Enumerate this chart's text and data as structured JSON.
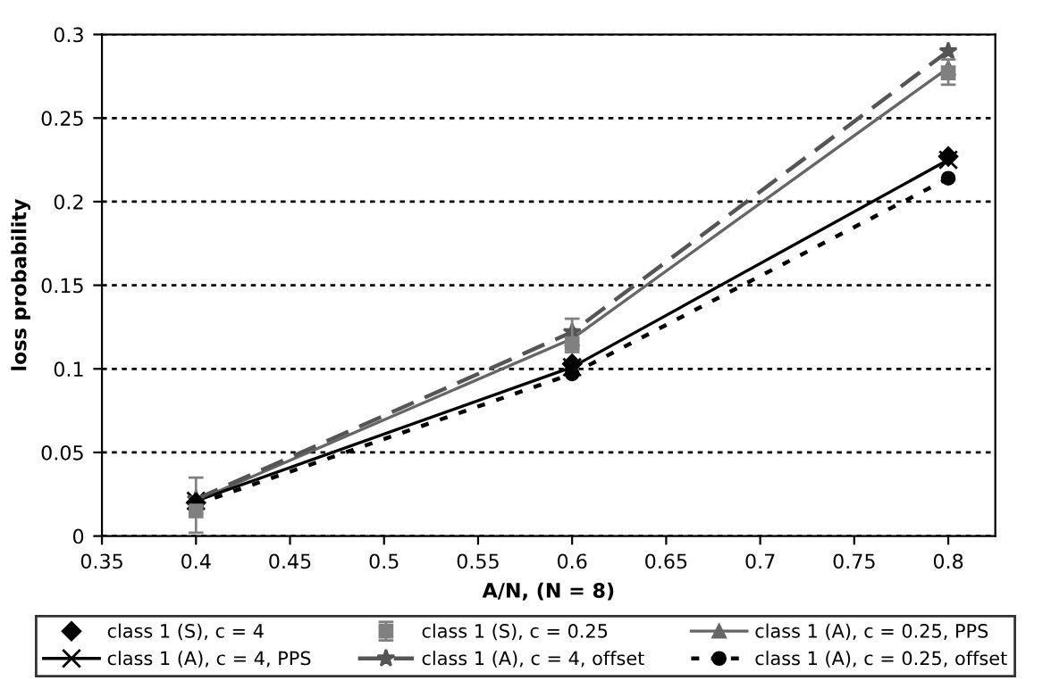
{
  "chart_data": {
    "type": "line",
    "xlabel": "A/N, (N = 8)",
    "ylabel": "loss probability",
    "x": [
      0.4,
      0.6,
      0.8
    ],
    "xlim": [
      0.35,
      0.825
    ],
    "xticks": [
      0.35,
      0.4,
      0.45,
      0.5,
      0.55,
      0.6,
      0.65,
      0.7,
      0.75,
      0.8
    ],
    "ylim": [
      0,
      0.3
    ],
    "yticks": [
      0,
      0.05,
      0.1,
      0.15,
      0.2,
      0.25,
      0.3
    ],
    "grid": "y",
    "legend": "bottom",
    "series": [
      {
        "name": "class 1 (S), c = 4",
        "type": "scatter",
        "marker": "diamond",
        "color": "#000000",
        "values": [
          0.02,
          0.103,
          0.227
        ]
      },
      {
        "name": "class 1 (S), c = 0.25",
        "type": "scatter",
        "marker": "square",
        "color": "#808080",
        "values": [
          0.015,
          0.115,
          0.277
        ],
        "errors": [
          [
            0.002,
            0.035
          ],
          [
            0.11,
            0.13
          ],
          [
            0.27,
            0.285
          ]
        ]
      },
      {
        "name": "class 1 (A), c = 0.25, PPS",
        "type": "line",
        "marker": "triangle",
        "line_style": "solid",
        "color": "#666666",
        "values": [
          0.021,
          0.118,
          0.28
        ]
      },
      {
        "name": "class 1 (A), c = 4, PPS",
        "type": "line",
        "marker": "cross",
        "line_style": "solid",
        "color": "#000000",
        "values": [
          0.021,
          0.101,
          0.225
        ]
      },
      {
        "name": "class 1 (A), c = 4, offset",
        "type": "line",
        "marker": "star",
        "line_style": "dashed",
        "color": "#555555",
        "values": [
          0.022,
          0.122,
          0.29
        ]
      },
      {
        "name": "class 1 (A), c = 0.25, offset",
        "type": "line",
        "marker": "circle",
        "line_style": "dotted",
        "color": "#000000",
        "values": [
          0.019,
          0.097,
          0.214
        ]
      }
    ]
  }
}
